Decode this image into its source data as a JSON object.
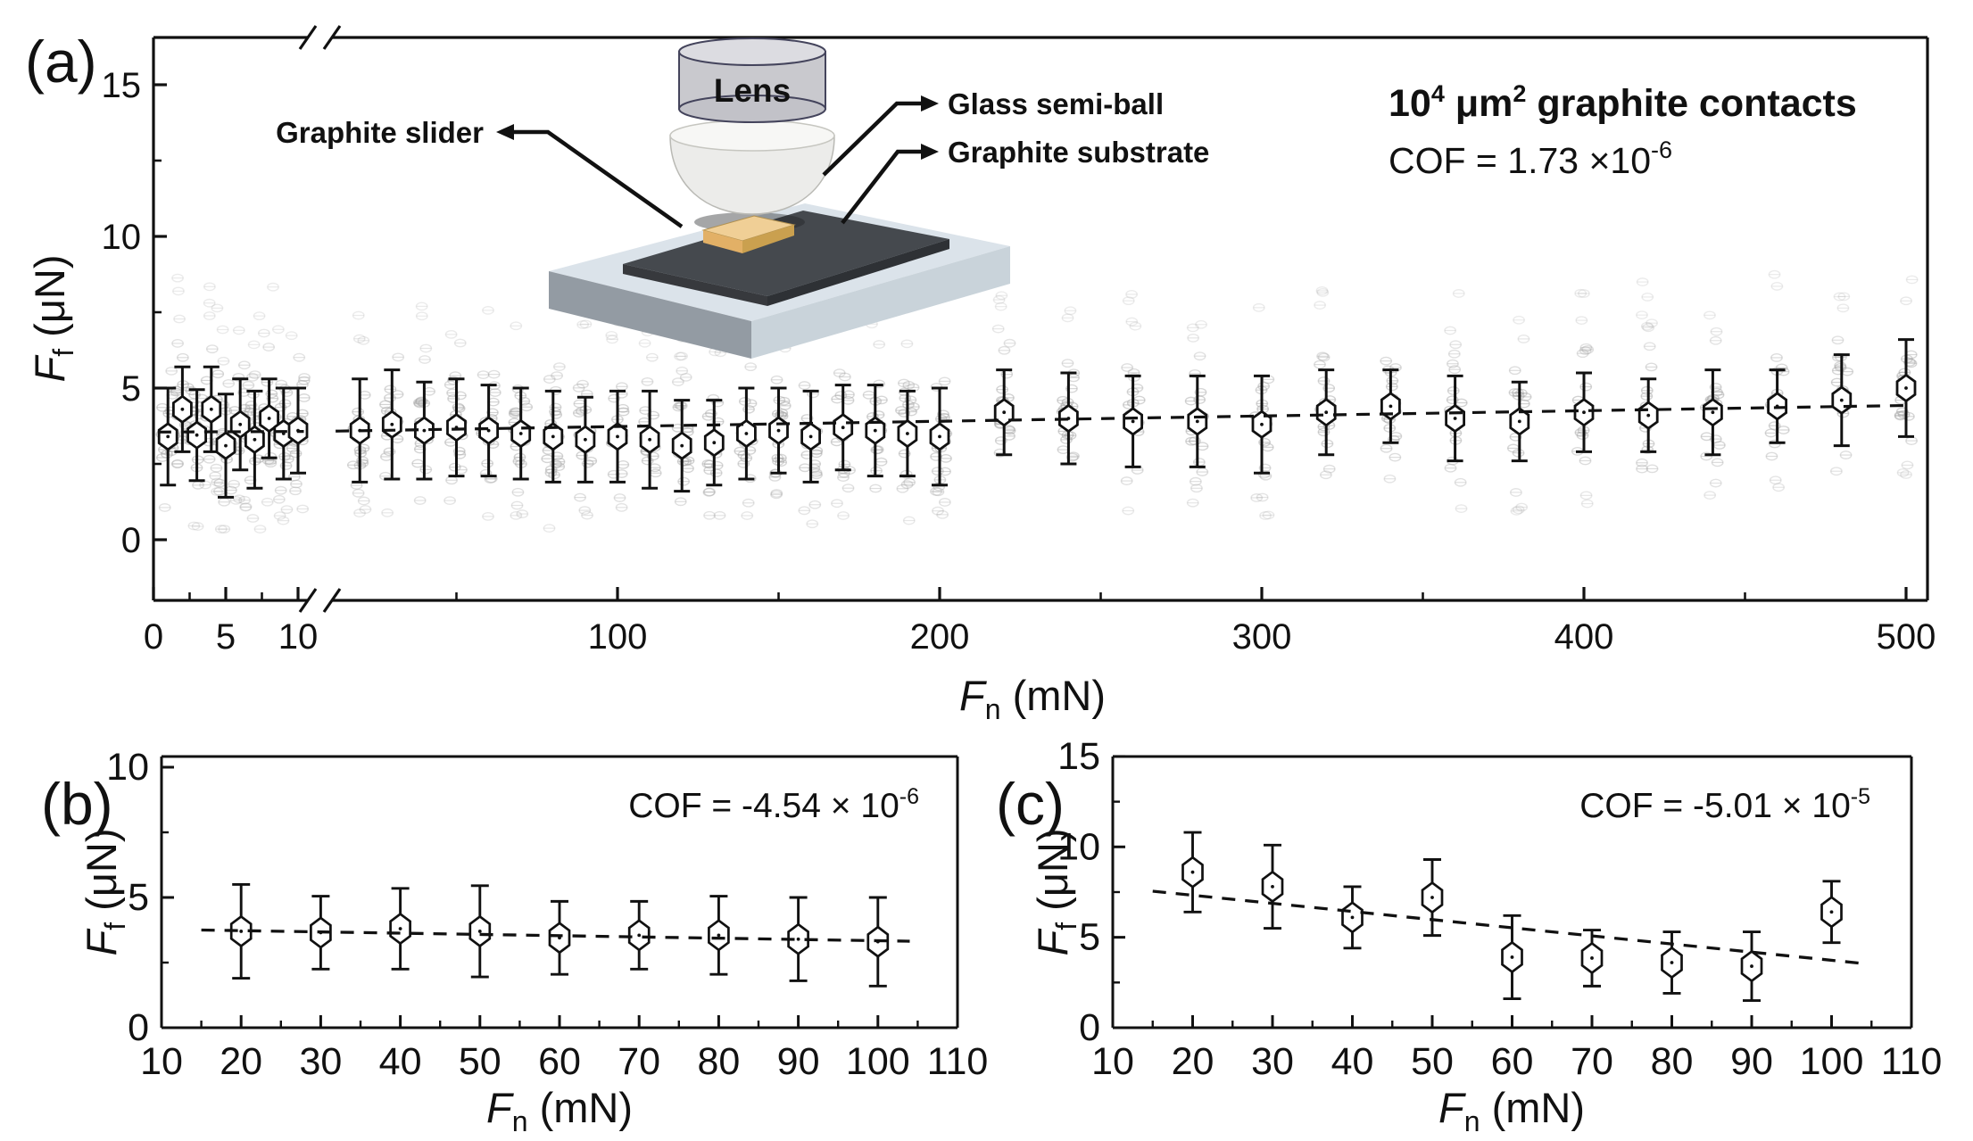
{
  "panels": {
    "a": {
      "letter": "(a)",
      "ann": {
        "f1": "10",
        "s1": "4",
        "f2": " μm",
        "s2": "2",
        "f3": " graphite contacts",
        "cof_base": "COF = 1.73 ×10",
        "cof_exp": "-6"
      }
    },
    "b": {
      "letter": "(b)",
      "ann": {
        "cof_base": "COF = -4.54 × 10",
        "cof_exp": "-6"
      }
    },
    "c": {
      "letter": "(c)",
      "ann": {
        "cof_base": "COF = -5.01 × 10",
        "cof_exp": "-5"
      }
    }
  },
  "labels": {
    "Ff": {
      "sym": "F",
      "sub": "f",
      "rest": " (μN)"
    },
    "Fn": {
      "sym": "F",
      "sub": "n",
      "rest": " (mN)"
    }
  },
  "inset": {
    "lens": "Lens",
    "ball": "Glass semi-ball",
    "slider": "Graphite slider",
    "substrate": "Graphite substrate"
  },
  "chart_data": [
    {
      "id": "a",
      "type": "scatter",
      "title": "10⁴ μm² graphite contacts",
      "annotation": "COF = 1.73 ×10⁻⁶",
      "xlabel": "Fn (mN)",
      "ylabel": "Ff (μN)",
      "x_axis": {
        "broken": true,
        "seg1_range": [
          0,
          10.5
        ],
        "seg1_ticks": [
          0,
          5,
          10
        ],
        "seg2_range": [
          12,
          506
        ],
        "seg2_ticks": [
          100,
          200,
          300,
          400,
          500
        ]
      },
      "y_axis": {
        "range": [
          -2,
          16.6
        ],
        "ticks": [
          0,
          5,
          10,
          15
        ]
      },
      "points_seg1": [
        [
          1,
          3.4,
          1.6
        ],
        [
          2,
          4.3,
          1.4
        ],
        [
          3,
          3.45,
          1.5
        ],
        [
          4,
          4.3,
          1.4
        ],
        [
          5,
          3.1,
          1.7
        ],
        [
          6,
          3.8,
          1.5
        ],
        [
          7,
          3.3,
          1.6
        ],
        [
          8,
          4.0,
          1.3
        ],
        [
          9,
          3.5,
          1.5
        ],
        [
          10,
          3.6,
          1.4
        ]
      ],
      "points_seg2": [
        [
          20,
          3.6,
          1.7
        ],
        [
          30,
          3.8,
          1.8
        ],
        [
          40,
          3.6,
          1.6
        ],
        [
          50,
          3.7,
          1.6
        ],
        [
          60,
          3.6,
          1.5
        ],
        [
          70,
          3.5,
          1.5
        ],
        [
          80,
          3.4,
          1.5
        ],
        [
          90,
          3.3,
          1.4
        ],
        [
          100,
          3.4,
          1.5
        ],
        [
          110,
          3.3,
          1.6
        ],
        [
          120,
          3.1,
          1.5
        ],
        [
          130,
          3.2,
          1.4
        ],
        [
          140,
          3.5,
          1.5
        ],
        [
          150,
          3.6,
          1.4
        ],
        [
          160,
          3.4,
          1.5
        ],
        [
          170,
          3.7,
          1.4
        ],
        [
          180,
          3.6,
          1.5
        ],
        [
          190,
          3.5,
          1.4
        ],
        [
          200,
          3.4,
          1.6
        ],
        [
          220,
          4.2,
          1.4
        ],
        [
          240,
          4.0,
          1.5
        ],
        [
          260,
          3.9,
          1.5
        ],
        [
          280,
          3.9,
          1.5
        ],
        [
          300,
          3.8,
          1.6
        ],
        [
          320,
          4.2,
          1.4
        ],
        [
          340,
          4.4,
          1.2
        ],
        [
          360,
          4.0,
          1.4
        ],
        [
          380,
          3.9,
          1.3
        ],
        [
          400,
          4.2,
          1.3
        ],
        [
          420,
          4.1,
          1.2
        ],
        [
          440,
          4.2,
          1.4
        ],
        [
          460,
          4.4,
          1.2
        ],
        [
          480,
          4.6,
          1.5
        ],
        [
          500,
          5.0,
          1.6
        ]
      ],
      "trend_seg1": [
        [
          0.3,
          3.55
        ],
        [
          10.4,
          3.57
        ]
      ],
      "trend_seg2": [
        [
          12.5,
          3.58
        ],
        [
          502,
          4.43
        ]
      ],
      "trend_style": "dashed",
      "scatter_cloud": {
        "seed": 987654321,
        "per_column": 20,
        "spread": 2.7,
        "y_min": 0.35,
        "y_max": 9.3
      }
    },
    {
      "id": "b",
      "type": "scatter",
      "annotation": "COF = -4.54 × 10⁻⁶",
      "xlabel": "Fn (mN)",
      "ylabel": "Ff (μN)",
      "x_axis": {
        "range": [
          10,
          110
        ],
        "ticks": [
          10,
          20,
          30,
          40,
          50,
          60,
          70,
          80,
          90,
          100,
          110
        ]
      },
      "y_axis": {
        "range": [
          0,
          10.4
        ],
        "ticks": [
          0,
          5,
          10
        ]
      },
      "points": [
        [
          20,
          3.7,
          1.8
        ],
        [
          30,
          3.65,
          1.4
        ],
        [
          40,
          3.8,
          1.55
        ],
        [
          50,
          3.7,
          1.75
        ],
        [
          60,
          3.45,
          1.4
        ],
        [
          70,
          3.55,
          1.3
        ],
        [
          80,
          3.55,
          1.5
        ],
        [
          90,
          3.4,
          1.6
        ],
        [
          100,
          3.3,
          1.7
        ]
      ],
      "trend": [
        [
          15,
          3.75
        ],
        [
          104,
          3.32
        ]
      ],
      "trend_style": "dashed"
    },
    {
      "id": "c",
      "type": "scatter",
      "annotation": "COF = -5.01 × 10⁻⁵",
      "xlabel": "Fn (mN)",
      "ylabel": "Ff (μN)",
      "x_axis": {
        "range": [
          10,
          110
        ],
        "ticks": [
          10,
          20,
          30,
          40,
          50,
          60,
          70,
          80,
          90,
          100,
          110
        ]
      },
      "y_axis": {
        "range": [
          0,
          15
        ],
        "ticks": [
          0,
          5,
          10,
          15
        ]
      },
      "points": [
        [
          20,
          8.6,
          2.2
        ],
        [
          30,
          7.8,
          2.3
        ],
        [
          40,
          6.1,
          1.7
        ],
        [
          50,
          7.2,
          2.1
        ],
        [
          60,
          3.9,
          2.3
        ],
        [
          70,
          3.85,
          1.55
        ],
        [
          80,
          3.6,
          1.7
        ],
        [
          90,
          3.4,
          1.9
        ],
        [
          100,
          6.4,
          1.7
        ]
      ],
      "trend": [
        [
          15,
          7.55
        ],
        [
          104,
          3.55
        ]
      ],
      "trend_style": "dashed"
    }
  ],
  "colors": {
    "ink": "#111111",
    "scatter_dot": "#a5a5a5",
    "platform_top": "#dbe3ea",
    "platform_left": "#939ba3",
    "platform_right": "#c9d3da",
    "substrate": "#45494e",
    "slider_gold": "#f0cf96",
    "lens_gray": "#c9c9ce"
  }
}
